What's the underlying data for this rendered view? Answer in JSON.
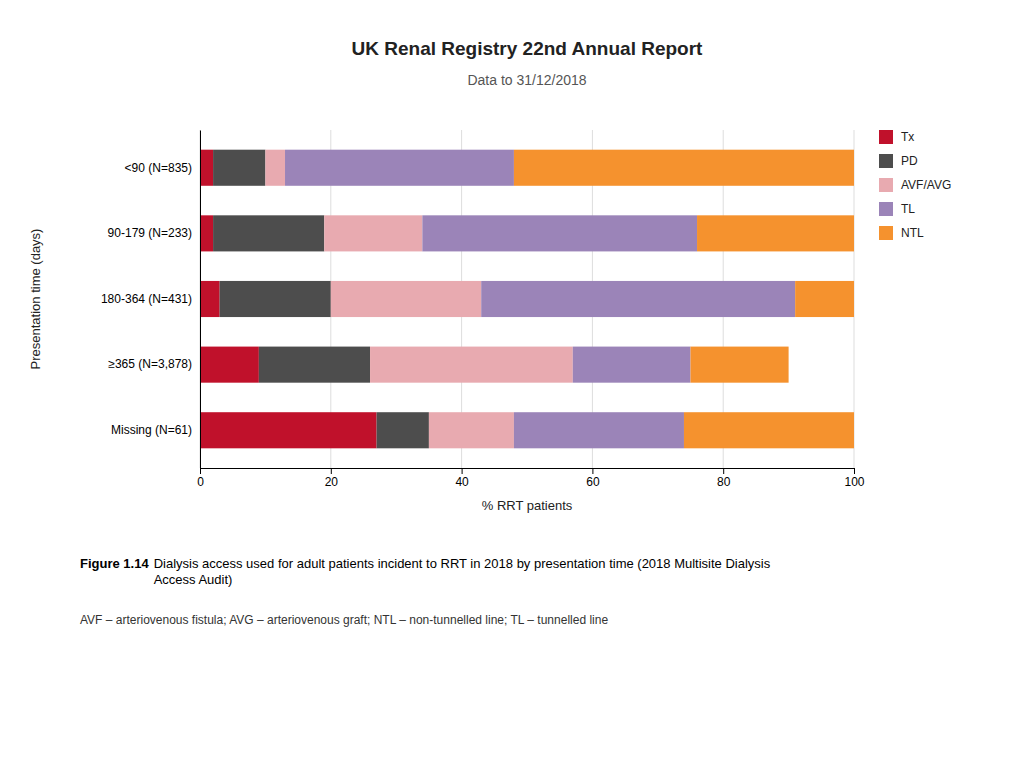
{
  "chart_data": {
    "type": "bar",
    "orientation": "horizontal",
    "stacked": true,
    "title": "UK Renal Registry 22nd Annual Report",
    "subtitle": "Data to 31/12/2018",
    "categories": [
      "<90 (N=835)",
      "90-179 (N=233)",
      "180-364 (N=431)",
      "≥365 (N=3,878)",
      "Missing (N=61)"
    ],
    "series": [
      {
        "name": "Tx",
        "color": "#c0112b",
        "values": [
          2.0,
          2.0,
          3.0,
          9.0,
          27.0
        ]
      },
      {
        "name": "PD",
        "color": "#4d4d4d",
        "values": [
          8.0,
          17.0,
          17.0,
          17.0,
          8.0
        ]
      },
      {
        "name": "AVF/AVG",
        "color": "#e8aab0",
        "values": [
          3.0,
          15.0,
          23.0,
          31.0,
          13.0
        ]
      },
      {
        "name": "TL",
        "color": "#9b84b8",
        "values": [
          35.0,
          42.0,
          48.0,
          18.0,
          26.0
        ]
      },
      {
        "name": "NTL",
        "color": "#f5922e",
        "values": [
          52.0,
          24.0,
          9.0,
          15.0,
          26.0
        ]
      }
    ],
    "xlabel": "% RRT patients",
    "ylabel": "Presentation time (days)",
    "xlim": [
      0,
      100
    ],
    "xticks": [
      0,
      20,
      40,
      60,
      80,
      100
    ],
    "grid": true,
    "legend": "right",
    "annotations": [
      "Figure 1.14",
      "Dialysis access used for adult patients incident to RRT in 2018 by presentation time (2018 Multisite Dialysis\nAccess Audit)",
      "AVF – arteriovenous fistula; AVG – arteriovenous graft; NTL – non-tunnelled line; TL – tunnelled line"
    ]
  }
}
